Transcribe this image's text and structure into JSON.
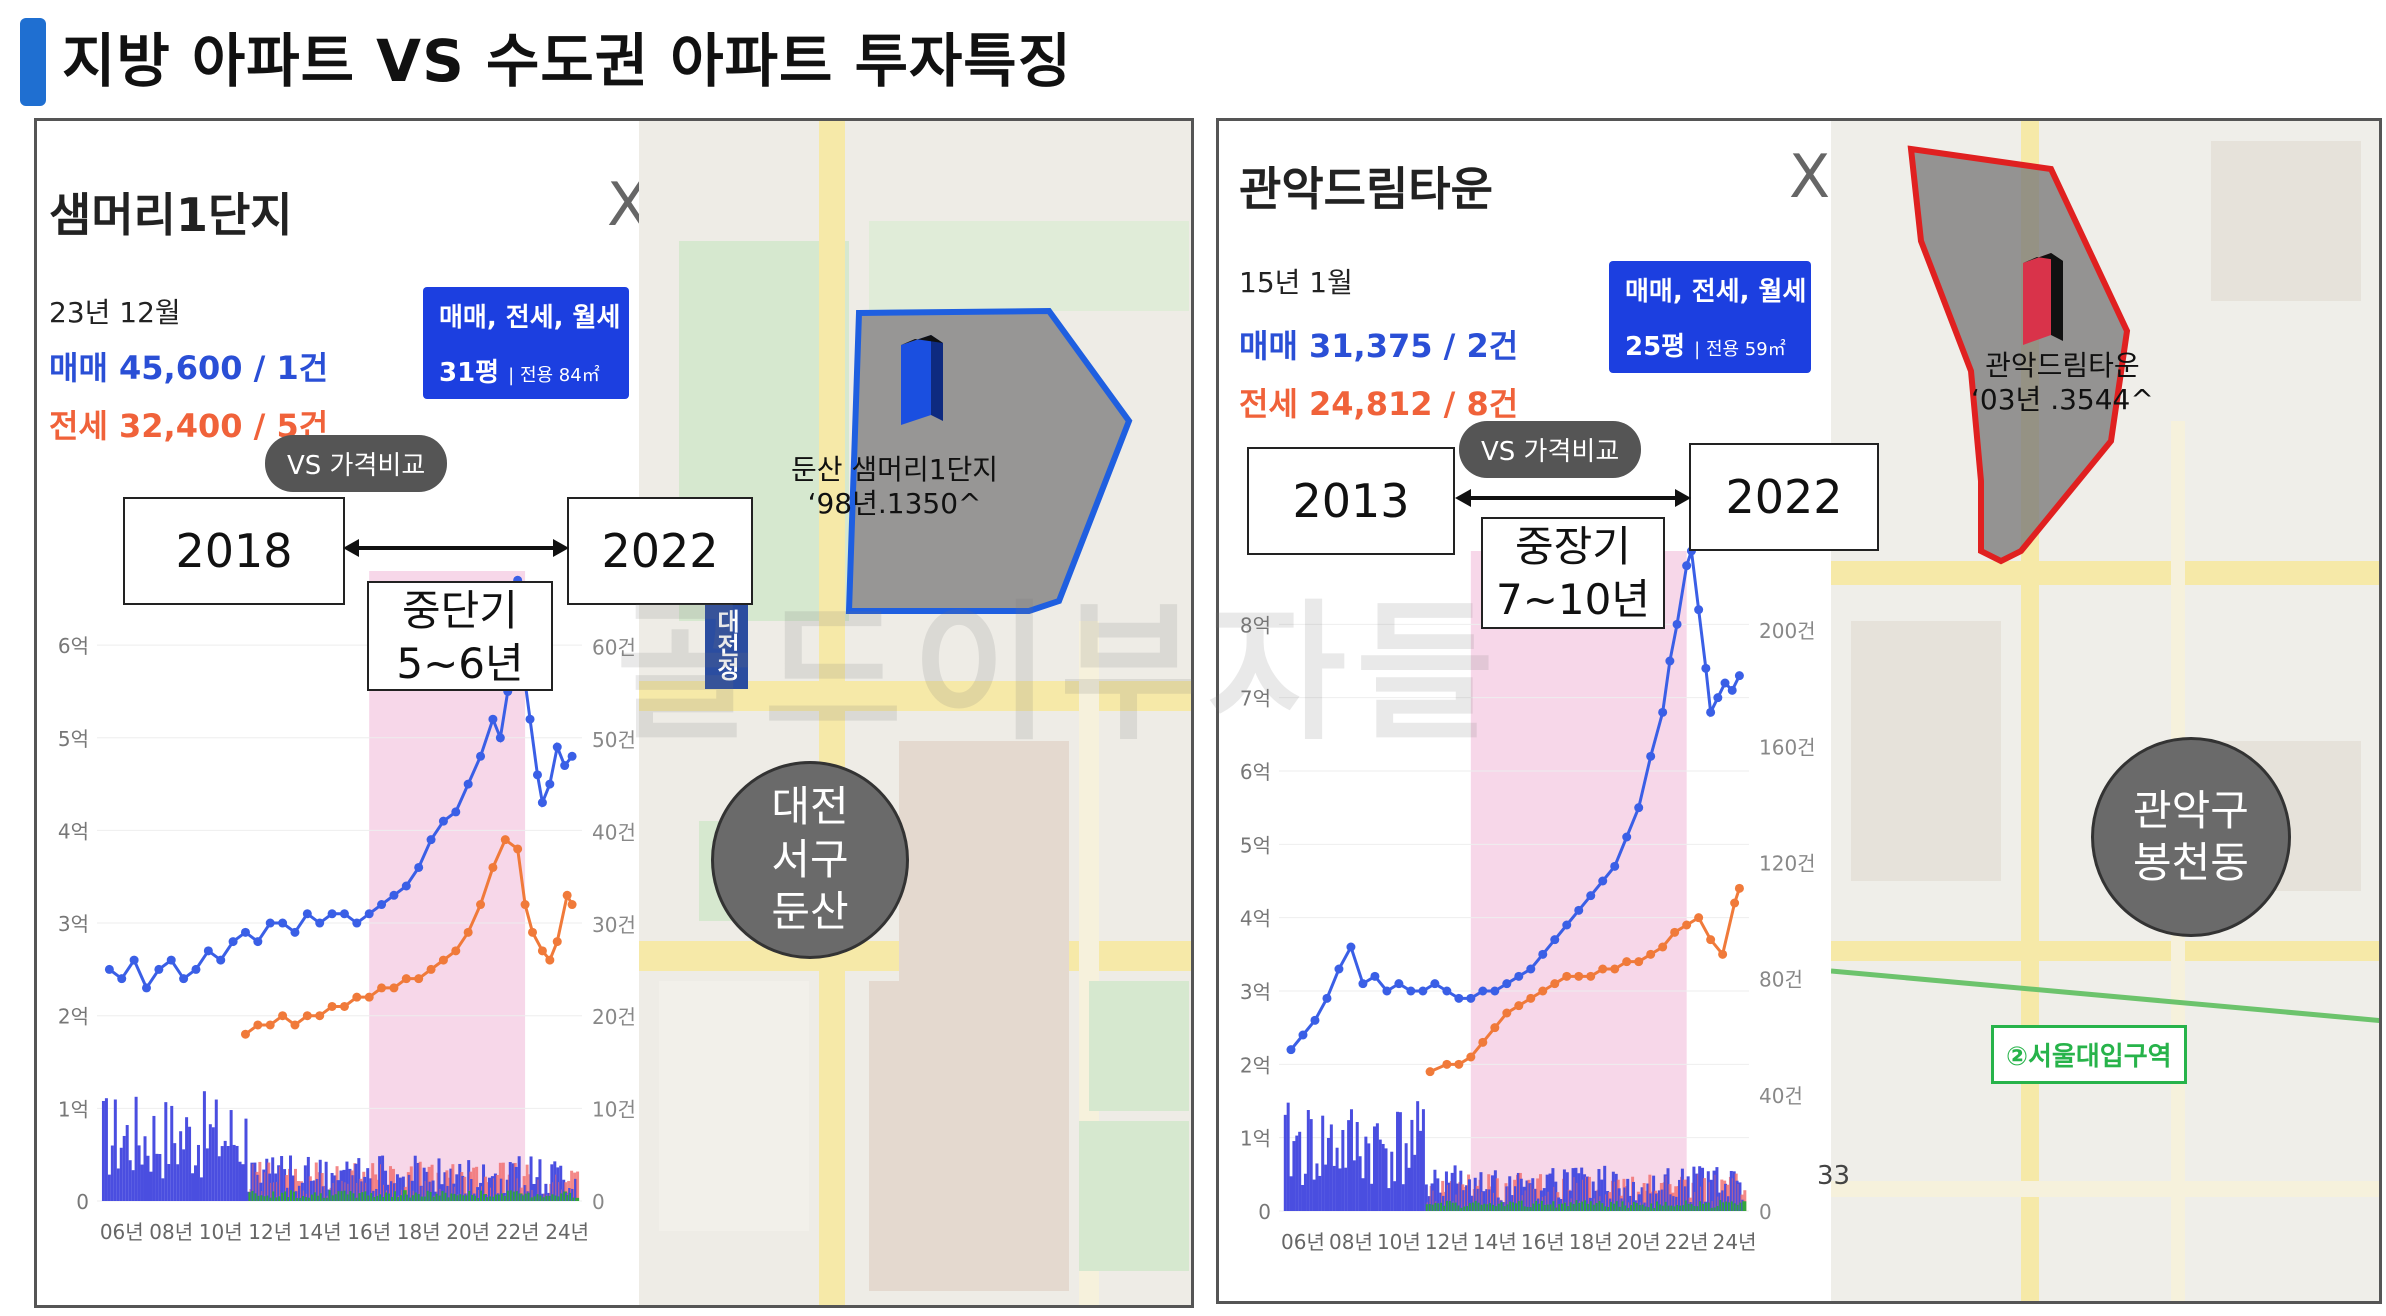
{
  "page": {
    "title": "지방 아파트 VS 수도권 아파트  투자특징",
    "page_number": "33",
    "watermark": "골드이부자들"
  },
  "left": {
    "name": "샘머리1단지",
    "date": "23년 12월",
    "sale": "매매 45,600 / 1건",
    "rent": "전세 32,400 / 5건",
    "filter_top": "매매, 전세, 월세 ∨",
    "filter_pyeong": "31평",
    "filter_area": "전용 84㎡",
    "vs_label": "VS 가격비교",
    "year_start": "2018",
    "year_end": "2022",
    "term_line1": "중단기",
    "term_line2": "5~6년",
    "apt_tag_line1": "둔산 샘머리1단지",
    "apt_tag_line2": "‘98년.1350^",
    "area_line1": "대전",
    "area_line2": "서구",
    "area_line3": "둔산",
    "road_label": "대전정",
    "close": "X"
  },
  "right": {
    "name": "관악드림타운",
    "date": "15년 1월",
    "sale": "매매 31,375 / 2건",
    "rent": "전세 24,812 / 8건",
    "filter_top": "매매, 전세, 월세 ∨",
    "filter_pyeong": "25평",
    "filter_area": "전용 59㎡",
    "vs_label": "VS 가격비교",
    "year_start": "2013",
    "year_end": "2022",
    "term_line1": "중장기",
    "term_line2": "7~10년",
    "apt_tag_line1": "관악드림타운",
    "apt_tag_line2": "‘03년 .3544^",
    "area_line1": "관악구",
    "area_line2": "봉천동",
    "station": "②서울대입구역",
    "close": "X"
  },
  "colors": {
    "sale": "#3a5fe6",
    "rent": "#f07a3a",
    "highlight": "#f4c6e0",
    "title_bar": "#1f6fd1",
    "volume_sale": "#4a4ee0",
    "volume_rent": "#f06a6a",
    "volume_wol": "#34a63a",
    "apt_outline_left": "#1f5fe0",
    "apt_outline_right": "#e02020"
  },
  "chart_data": [
    {
      "type": "line",
      "title": "샘머리1단지",
      "x_ticks": [
        "06년",
        "08년",
        "10년",
        "12년",
        "14년",
        "16년",
        "18년",
        "20년",
        "22년",
        "24년"
      ],
      "y_ticks": [
        "0",
        "1억",
        "2억",
        "3억",
        "4억",
        "5억",
        "6억"
      ],
      "y2_ticks": [
        "0",
        "10건",
        "20건",
        "30건",
        "40건",
        "50건",
        "60건"
      ],
      "ylim": [
        0,
        6.8
      ],
      "y2lim": [
        0,
        68
      ],
      "highlight_range": [
        2016,
        2022.3
      ],
      "series": [
        {
          "name": "매매",
          "x": [
            2005.5,
            2006,
            2006.5,
            2007,
            2007.5,
            2008,
            2008.5,
            2009,
            2009.5,
            2010,
            2010.5,
            2011,
            2011.5,
            2012,
            2012.5,
            2013,
            2013.5,
            2014,
            2014.5,
            2015,
            2015.5,
            2016,
            2016.5,
            2017,
            2017.5,
            2018,
            2018.5,
            2019,
            2019.5,
            2020,
            2020.5,
            2021,
            2021.3,
            2021.6,
            2022,
            2022.2,
            2022.5,
            2022.8,
            2023,
            2023.3,
            2023.6,
            2023.9,
            2024.2
          ],
          "values": [
            2.5,
            2.4,
            2.6,
            2.3,
            2.5,
            2.6,
            2.4,
            2.5,
            2.7,
            2.6,
            2.8,
            2.9,
            2.8,
            3.0,
            3.0,
            2.9,
            3.1,
            3.0,
            3.1,
            3.1,
            3.0,
            3.1,
            3.2,
            3.3,
            3.4,
            3.6,
            3.9,
            4.1,
            4.2,
            4.5,
            4.8,
            5.2,
            5.0,
            5.5,
            6.7,
            5.8,
            5.2,
            4.6,
            4.3,
            4.5,
            4.9,
            4.7,
            4.8
          ]
        },
        {
          "name": "전세",
          "x": [
            2011,
            2011.5,
            2012,
            2012.5,
            2013,
            2013.5,
            2014,
            2014.5,
            2015,
            2015.5,
            2016,
            2016.5,
            2017,
            2017.5,
            2018,
            2018.5,
            2019,
            2019.5,
            2020,
            2020.5,
            2021,
            2021.5,
            2022,
            2022.3,
            2022.6,
            2023,
            2023.3,
            2023.6,
            2024,
            2024.2
          ],
          "values": [
            1.8,
            1.9,
            1.9,
            2.0,
            1.9,
            2.0,
            2.0,
            2.1,
            2.1,
            2.2,
            2.2,
            2.3,
            2.3,
            2.4,
            2.4,
            2.5,
            2.6,
            2.7,
            2.9,
            3.2,
            3.6,
            3.9,
            3.8,
            3.2,
            2.9,
            2.7,
            2.6,
            2.8,
            3.3,
            3.2
          ]
        }
      ]
    },
    {
      "type": "line",
      "title": "관악드림타운",
      "x_ticks": [
        "06년",
        "08년",
        "10년",
        "12년",
        "14년",
        "16년",
        "18년",
        "20년",
        "22년",
        "24년"
      ],
      "y_ticks": [
        "0",
        "1억",
        "2억",
        "3억",
        "4억",
        "5억",
        "6억",
        "7억",
        "8억"
      ],
      "y2_ticks": [
        "0",
        "40건",
        "80건",
        "120건",
        "160건",
        "200건"
      ],
      "ylim": [
        0,
        9
      ],
      "y2lim": [
        0,
        225
      ],
      "highlight_range": [
        2013,
        2022
      ],
      "series": [
        {
          "name": "매매",
          "x": [
            2005.5,
            2006,
            2006.5,
            2007,
            2007.5,
            2008,
            2008.5,
            2009,
            2009.5,
            2010,
            2010.5,
            2011,
            2011.5,
            2012,
            2012.5,
            2013,
            2013.5,
            2014,
            2014.5,
            2015,
            2015.5,
            2016,
            2016.5,
            2017,
            2017.5,
            2018,
            2018.5,
            2019,
            2019.5,
            2020,
            2020.5,
            2021,
            2021.3,
            2021.6,
            2022,
            2022.2,
            2022.5,
            2022.8,
            2023,
            2023.3,
            2023.6,
            2023.9,
            2024.2
          ],
          "values": [
            2.2,
            2.4,
            2.6,
            2.9,
            3.3,
            3.6,
            3.1,
            3.2,
            3.0,
            3.1,
            3.0,
            3.0,
            3.1,
            3.0,
            2.9,
            2.9,
            3.0,
            3.0,
            3.1,
            3.2,
            3.3,
            3.5,
            3.7,
            3.9,
            4.1,
            4.3,
            4.5,
            4.7,
            5.1,
            5.5,
            6.2,
            6.8,
            7.5,
            8.0,
            8.8,
            9.0,
            8.2,
            7.4,
            6.8,
            7.0,
            7.2,
            7.1,
            7.3
          ]
        },
        {
          "name": "전세",
          "x": [
            2011.3,
            2012,
            2012.5,
            2013,
            2013.5,
            2014,
            2014.5,
            2015,
            2015.5,
            2016,
            2016.5,
            2017,
            2017.5,
            2018,
            2018.5,
            2019,
            2019.5,
            2020,
            2020.5,
            2021,
            2021.5,
            2022,
            2022.5,
            2023,
            2023.5,
            2024,
            2024.2
          ],
          "values": [
            1.9,
            2.0,
            2.0,
            2.1,
            2.3,
            2.5,
            2.7,
            2.8,
            2.9,
            3.0,
            3.1,
            3.2,
            3.2,
            3.2,
            3.3,
            3.3,
            3.4,
            3.4,
            3.5,
            3.6,
            3.8,
            3.9,
            4.0,
            3.7,
            3.5,
            4.2,
            4.4
          ]
        }
      ]
    }
  ]
}
